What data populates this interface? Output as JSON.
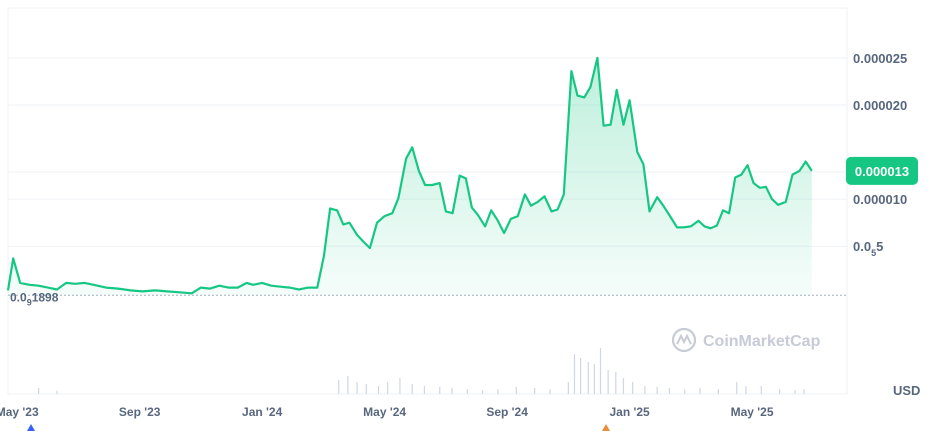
{
  "chart_data": {
    "type": "area",
    "currency": "USD",
    "current_price_label": "0.000013",
    "min_label_parts": [
      "0.0",
      "9",
      "1898"
    ],
    "watermark": "CoinMarketCap",
    "y_ticks": [
      {
        "value": 2.5e-05,
        "label": "0.000025"
      },
      {
        "value": 2e-05,
        "label": "0.000020"
      },
      {
        "value": 1e-05,
        "label": "0.000010"
      },
      {
        "value": 5e-06,
        "label_parts": [
          "0.0",
          "5",
          "5"
        ]
      }
    ],
    "x_ticks": [
      {
        "x": 0.3,
        "label": "May '23"
      },
      {
        "x": 4.3,
        "label": "Sep '23"
      },
      {
        "x": 8.3,
        "label": "Jan '24"
      },
      {
        "x": 12.3,
        "label": "May '24"
      },
      {
        "x": 16.3,
        "label": "Sep '24"
      },
      {
        "x": 20.3,
        "label": "Jan '25"
      },
      {
        "x": 24.3,
        "label": "May '25"
      }
    ],
    "ylim": [
      -1.07e-05,
      3.03e-05
    ],
    "xlim": [
      0,
      27.4
    ],
    "colors": {
      "line": "#16c784",
      "accent": "#16c784",
      "grid": "#eff2f5",
      "text": "#58667e"
    },
    "series": [
      {
        "points": [
          [
            0.0,
            3e-07
          ],
          [
            0.17,
            3.7e-06
          ],
          [
            0.4,
            1.1e-06
          ],
          [
            0.7,
            9e-07
          ],
          [
            1.0,
            8e-07
          ],
          [
            1.3,
            6e-07
          ],
          [
            1.6,
            4e-07
          ],
          [
            1.9,
            1.1e-06
          ],
          [
            2.2,
            1e-06
          ],
          [
            2.5,
            1.1e-06
          ],
          [
            2.8,
            9e-07
          ],
          [
            3.2,
            6e-07
          ],
          [
            3.6,
            5e-07
          ],
          [
            4.0,
            3e-07
          ],
          [
            4.4,
            2e-07
          ],
          [
            4.8,
            3e-07
          ],
          [
            5.2,
            2e-07
          ],
          [
            5.6,
            1e-07
          ],
          [
            6.0,
            0.0
          ],
          [
            6.3,
            6e-07
          ],
          [
            6.6,
            5e-07
          ],
          [
            6.9,
            8e-07
          ],
          [
            7.2,
            6e-07
          ],
          [
            7.5,
            6e-07
          ],
          [
            7.8,
            1.1e-06
          ],
          [
            8.0,
            9e-07
          ],
          [
            8.3,
            1.1e-06
          ],
          [
            8.6,
            8e-07
          ],
          [
            8.9,
            7e-07
          ],
          [
            9.2,
            6e-07
          ],
          [
            9.5,
            4e-07
          ],
          [
            9.8,
            6e-07
          ],
          [
            10.1,
            6e-07
          ],
          [
            10.32,
            4e-06
          ],
          [
            10.52,
            9e-06
          ],
          [
            10.75,
            8.8e-06
          ],
          [
            10.95,
            7.3e-06
          ],
          [
            11.15,
            7.5e-06
          ],
          [
            11.4,
            6.2e-06
          ],
          [
            11.6,
            5.5e-06
          ],
          [
            11.82,
            4.8e-06
          ],
          [
            12.05,
            7.5e-06
          ],
          [
            12.3,
            8.2e-06
          ],
          [
            12.55,
            8.5e-06
          ],
          [
            12.75,
            1.01e-05
          ],
          [
            13.0,
            1.43e-05
          ],
          [
            13.2,
            1.55e-05
          ],
          [
            13.42,
            1.3e-05
          ],
          [
            13.62,
            1.15e-05
          ],
          [
            13.85,
            1.15e-05
          ],
          [
            14.1,
            1.17e-05
          ],
          [
            14.3,
            8.7e-06
          ],
          [
            14.52,
            8.5e-06
          ],
          [
            14.75,
            1.25e-05
          ],
          [
            14.95,
            1.22e-05
          ],
          [
            15.15,
            9.1e-06
          ],
          [
            15.35,
            8.3e-06
          ],
          [
            15.58,
            7.1e-06
          ],
          [
            15.78,
            8.8e-06
          ],
          [
            15.98,
            7.8e-06
          ],
          [
            16.2,
            6.4e-06
          ],
          [
            16.42,
            7.9e-06
          ],
          [
            16.65,
            8.2e-06
          ],
          [
            16.88,
            1.05e-05
          ],
          [
            17.08,
            9.3e-06
          ],
          [
            17.3,
            9.7e-06
          ],
          [
            17.52,
            1.03e-05
          ],
          [
            17.75,
            8.7e-06
          ],
          [
            17.95,
            8.9e-06
          ],
          [
            18.15,
            1.05e-05
          ],
          [
            18.4,
            2.36e-05
          ],
          [
            18.6,
            2.1e-05
          ],
          [
            18.82,
            2.08e-05
          ],
          [
            19.02,
            2.19e-05
          ],
          [
            19.25,
            2.5e-05
          ],
          [
            19.45,
            1.78e-05
          ],
          [
            19.68,
            1.79e-05
          ],
          [
            19.88,
            2.16e-05
          ],
          [
            20.1,
            1.79e-05
          ],
          [
            20.3,
            2.05e-05
          ],
          [
            20.55,
            1.5e-05
          ],
          [
            20.75,
            1.37e-05
          ],
          [
            20.95,
            8.7e-06
          ],
          [
            21.2,
            1.02e-05
          ],
          [
            21.4,
            9.3e-06
          ],
          [
            21.62,
            8.2e-06
          ],
          [
            21.85,
            7e-06
          ],
          [
            22.05,
            7e-06
          ],
          [
            22.3,
            7.1e-06
          ],
          [
            22.55,
            7.7e-06
          ],
          [
            22.75,
            7.1e-06
          ],
          [
            22.95,
            6.9e-06
          ],
          [
            23.15,
            7.2e-06
          ],
          [
            23.35,
            8.8e-06
          ],
          [
            23.55,
            8.5e-06
          ],
          [
            23.75,
            1.23e-05
          ],
          [
            23.95,
            1.26e-05
          ],
          [
            24.15,
            1.36e-05
          ],
          [
            24.35,
            1.17e-05
          ],
          [
            24.55,
            1.12e-05
          ],
          [
            24.75,
            1.13e-05
          ],
          [
            24.95,
            1e-05
          ],
          [
            25.15,
            9.4e-06
          ],
          [
            25.4,
            9.7e-06
          ],
          [
            25.62,
            1.26e-05
          ],
          [
            25.85,
            1.3e-05
          ],
          [
            26.05,
            1.4e-05
          ],
          [
            26.25,
            1.3e-05
          ]
        ]
      }
    ],
    "volume_bars": [
      [
        1.0,
        0.15
      ],
      [
        1.6,
        0.08
      ],
      [
        10.8,
        0.35
      ],
      [
        11.1,
        0.45
      ],
      [
        11.4,
        0.3
      ],
      [
        11.7,
        0.25
      ],
      [
        12.1,
        0.2
      ],
      [
        12.4,
        0.3
      ],
      [
        12.8,
        0.4
      ],
      [
        13.2,
        0.25
      ],
      [
        13.6,
        0.2
      ],
      [
        14.1,
        0.18
      ],
      [
        14.5,
        0.15
      ],
      [
        15.0,
        0.12
      ],
      [
        15.5,
        0.1
      ],
      [
        16.0,
        0.12
      ],
      [
        16.6,
        0.18
      ],
      [
        17.2,
        0.15
      ],
      [
        17.7,
        0.12
      ],
      [
        18.3,
        0.3
      ],
      [
        18.5,
        1.0
      ],
      [
        18.7,
        0.9
      ],
      [
        18.95,
        0.8
      ],
      [
        19.15,
        0.75
      ],
      [
        19.35,
        1.15
      ],
      [
        19.6,
        0.6
      ],
      [
        19.85,
        0.55
      ],
      [
        20.1,
        0.4
      ],
      [
        20.4,
        0.3
      ],
      [
        20.8,
        0.2
      ],
      [
        21.2,
        0.18
      ],
      [
        21.6,
        0.15
      ],
      [
        22.1,
        0.12
      ],
      [
        22.6,
        0.15
      ],
      [
        23.2,
        0.12
      ],
      [
        23.8,
        0.3
      ],
      [
        24.1,
        0.2
      ],
      [
        24.6,
        0.2
      ],
      [
        25.2,
        0.12
      ],
      [
        25.7,
        0.1
      ],
      [
        26.0,
        0.12
      ]
    ]
  }
}
